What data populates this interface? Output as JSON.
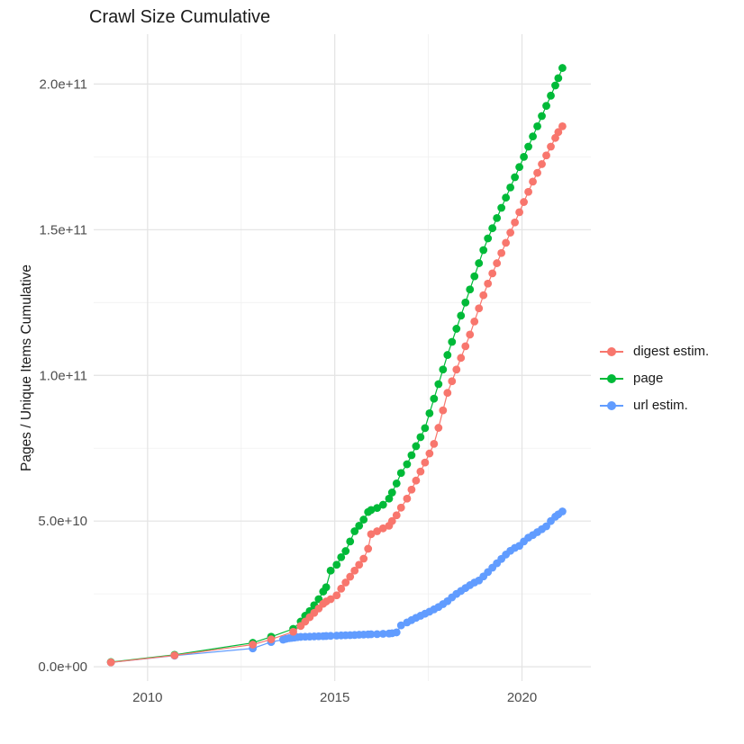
{
  "chart_data": {
    "type": "scatter",
    "title": "Crawl Size Cumulative",
    "xlabel": "",
    "ylabel": "Pages / Unique Items Cumulative",
    "value_unit": "1e9",
    "grid": true,
    "legend_position": "right",
    "xlim": [
      2008.56,
      2021.84
    ],
    "ylim_e9": [
      -4.9,
      217.1
    ],
    "x_ticks": {
      "values": [
        2010,
        2015,
        2020
      ],
      "labels": [
        "2010",
        "2015",
        "2020"
      ],
      "minor": [
        2012.5,
        2017.5
      ]
    },
    "y_ticks": {
      "values_e9": [
        0,
        50,
        100,
        150,
        200
      ],
      "labels": [
        "0.0e+00",
        "5.0e+10",
        "1.0e+11",
        "1.5e+11",
        "2.0e+11"
      ],
      "minor_e9": [
        25,
        75,
        125,
        175
      ]
    },
    "series": [
      {
        "name": "digest estim.",
        "color": "#F8766D",
        "points": [
          [
            2009.02,
            1.5
          ],
          [
            2010.72,
            3.9
          ],
          [
            2012.81,
            7.6
          ],
          [
            2013.3,
            9.4
          ],
          [
            2013.89,
            12
          ],
          [
            2014.09,
            14
          ],
          [
            2014.21,
            15.5
          ],
          [
            2014.33,
            17
          ],
          [
            2014.45,
            18.5
          ],
          [
            2014.57,
            20
          ],
          [
            2014.69,
            21.6
          ],
          [
            2014.77,
            22.4
          ],
          [
            2014.89,
            23.2
          ],
          [
            2015.05,
            24.5
          ],
          [
            2015.17,
            26.8
          ],
          [
            2015.29,
            28.9
          ],
          [
            2015.41,
            30.9
          ],
          [
            2015.53,
            33
          ],
          [
            2015.65,
            35
          ],
          [
            2015.77,
            37.1
          ],
          [
            2015.89,
            40.5
          ],
          [
            2015.97,
            45.5
          ],
          [
            2016.13,
            46.5
          ],
          [
            2016.29,
            47.5
          ],
          [
            2016.45,
            48.4
          ],
          [
            2016.53,
            50
          ],
          [
            2016.65,
            52
          ],
          [
            2016.77,
            54.6
          ],
          [
            2016.93,
            57.7
          ],
          [
            2017.05,
            60.8
          ],
          [
            2017.17,
            63.9
          ],
          [
            2017.29,
            67
          ],
          [
            2017.41,
            70.1
          ],
          [
            2017.53,
            73.2
          ],
          [
            2017.65,
            76.5
          ],
          [
            2017.77,
            82
          ],
          [
            2017.89,
            88
          ],
          [
            2018.01,
            94
          ],
          [
            2018.13,
            98
          ],
          [
            2018.25,
            102
          ],
          [
            2018.37,
            106
          ],
          [
            2018.49,
            110
          ],
          [
            2018.61,
            114
          ],
          [
            2018.73,
            118.5
          ],
          [
            2018.85,
            123
          ],
          [
            2018.97,
            127.5
          ],
          [
            2019.09,
            131.5
          ],
          [
            2019.21,
            135
          ],
          [
            2019.33,
            138.5
          ],
          [
            2019.45,
            142
          ],
          [
            2019.57,
            145.5
          ],
          [
            2019.69,
            149
          ],
          [
            2019.81,
            152.5
          ],
          [
            2019.93,
            156
          ],
          [
            2020.05,
            159.5
          ],
          [
            2020.17,
            163
          ],
          [
            2020.29,
            166.5
          ],
          [
            2020.41,
            169.5
          ],
          [
            2020.53,
            172.5
          ],
          [
            2020.65,
            175.5
          ],
          [
            2020.77,
            178.5
          ],
          [
            2020.89,
            181.5
          ],
          [
            2020.97,
            183.5
          ],
          [
            2021.08,
            185.5
          ]
        ]
      },
      {
        "name": "page",
        "color": "#00BA38",
        "points": [
          [
            2009.02,
            1.6
          ],
          [
            2010.72,
            4.1
          ],
          [
            2012.81,
            8.2
          ],
          [
            2013.3,
            10.3
          ],
          [
            2013.89,
            13
          ],
          [
            2014.09,
            15.5
          ],
          [
            2014.21,
            17.5
          ],
          [
            2014.33,
            19.1
          ],
          [
            2014.45,
            21.1
          ],
          [
            2014.57,
            23.2
          ],
          [
            2014.69,
            25.8
          ],
          [
            2014.77,
            27.3
          ],
          [
            2014.89,
            33
          ],
          [
            2015.05,
            35
          ],
          [
            2015.17,
            37.6
          ],
          [
            2015.29,
            39.7
          ],
          [
            2015.41,
            43
          ],
          [
            2015.53,
            46.5
          ],
          [
            2015.65,
            48.4
          ],
          [
            2015.77,
            50.5
          ],
          [
            2015.89,
            53.1
          ],
          [
            2015.97,
            53.8
          ],
          [
            2016.13,
            54.5
          ],
          [
            2016.29,
            55.6
          ],
          [
            2016.45,
            57.7
          ],
          [
            2016.53,
            59.8
          ],
          [
            2016.65,
            62.9
          ],
          [
            2016.77,
            66.5
          ],
          [
            2016.93,
            69.5
          ],
          [
            2017.05,
            72.6
          ],
          [
            2017.17,
            75.7
          ],
          [
            2017.29,
            78.8
          ],
          [
            2017.41,
            81.9
          ],
          [
            2017.53,
            87
          ],
          [
            2017.65,
            92
          ],
          [
            2017.77,
            97
          ],
          [
            2017.89,
            102
          ],
          [
            2018.01,
            107
          ],
          [
            2018.13,
            111.5
          ],
          [
            2018.25,
            116
          ],
          [
            2018.37,
            120.5
          ],
          [
            2018.49,
            125
          ],
          [
            2018.61,
            129.5
          ],
          [
            2018.73,
            134
          ],
          [
            2018.85,
            138.5
          ],
          [
            2018.97,
            143
          ],
          [
            2019.09,
            147
          ],
          [
            2019.21,
            150.5
          ],
          [
            2019.33,
            154
          ],
          [
            2019.45,
            157.5
          ],
          [
            2019.57,
            161
          ],
          [
            2019.69,
            164.5
          ],
          [
            2019.81,
            168
          ],
          [
            2019.93,
            171.5
          ],
          [
            2020.05,
            175
          ],
          [
            2020.17,
            178.5
          ],
          [
            2020.29,
            182
          ],
          [
            2020.41,
            185.5
          ],
          [
            2020.53,
            189
          ],
          [
            2020.65,
            192.5
          ],
          [
            2020.77,
            196
          ],
          [
            2020.89,
            199.5
          ],
          [
            2020.97,
            202
          ],
          [
            2021.08,
            205.5
          ]
        ]
      },
      {
        "name": "url estim.",
        "color": "#619CFF",
        "points": [
          [
            2009.02,
            1.5
          ],
          [
            2010.72,
            3.8
          ],
          [
            2012.81,
            6.3
          ],
          [
            2013.3,
            8.5
          ],
          [
            2013.62,
            9.3
          ],
          [
            2013.7,
            9.6
          ],
          [
            2013.78,
            9.8
          ],
          [
            2013.85,
            9.9
          ],
          [
            2013.92,
            10
          ],
          [
            2014.0,
            10.15
          ],
          [
            2014.09,
            10.25
          ],
          [
            2014.21,
            10.3
          ],
          [
            2014.33,
            10.35
          ],
          [
            2014.45,
            10.4
          ],
          [
            2014.57,
            10.45
          ],
          [
            2014.69,
            10.5
          ],
          [
            2014.77,
            10.55
          ],
          [
            2014.89,
            10.6
          ],
          [
            2015.05,
            10.7
          ],
          [
            2015.17,
            10.75
          ],
          [
            2015.29,
            10.8
          ],
          [
            2015.41,
            10.85
          ],
          [
            2015.53,
            10.9
          ],
          [
            2015.65,
            11
          ],
          [
            2015.77,
            11.05
          ],
          [
            2015.89,
            11.1
          ],
          [
            2015.97,
            11.15
          ],
          [
            2016.13,
            11.2
          ],
          [
            2016.29,
            11.3
          ],
          [
            2016.45,
            11.4
          ],
          [
            2016.53,
            11.5
          ],
          [
            2016.65,
            11.8
          ],
          [
            2016.77,
            14.2
          ],
          [
            2016.93,
            15.2
          ],
          [
            2017.05,
            16
          ],
          [
            2017.17,
            16.8
          ],
          [
            2017.29,
            17.5
          ],
          [
            2017.41,
            18.2
          ],
          [
            2017.53,
            18.9
          ],
          [
            2017.65,
            19.7
          ],
          [
            2017.77,
            20.5
          ],
          [
            2017.89,
            21.5
          ],
          [
            2018.01,
            22.5
          ],
          [
            2018.13,
            23.8
          ],
          [
            2018.25,
            25
          ],
          [
            2018.37,
            26
          ],
          [
            2018.49,
            27
          ],
          [
            2018.61,
            28
          ],
          [
            2018.73,
            28.9
          ],
          [
            2018.85,
            29.6
          ],
          [
            2018.97,
            31
          ],
          [
            2019.09,
            32.5
          ],
          [
            2019.21,
            34
          ],
          [
            2019.33,
            35.5
          ],
          [
            2019.45,
            37
          ],
          [
            2019.57,
            38.5
          ],
          [
            2019.69,
            39.8
          ],
          [
            2019.81,
            40.8
          ],
          [
            2019.93,
            41.5
          ],
          [
            2020.05,
            43
          ],
          [
            2020.17,
            44.3
          ],
          [
            2020.29,
            45.2
          ],
          [
            2020.41,
            46.2
          ],
          [
            2020.53,
            47.2
          ],
          [
            2020.65,
            48.2
          ],
          [
            2020.77,
            50
          ],
          [
            2020.89,
            51.5
          ],
          [
            2020.97,
            52.3
          ],
          [
            2021.08,
            53.3
          ]
        ]
      }
    ],
    "style": {
      "major_grid_color": "#e3e3e3",
      "minor_grid_color": "#f0f0f0",
      "tick_label_color": "#4d4d4d",
      "text_color": "#1a1a1a",
      "background": "#ffffff"
    }
  }
}
